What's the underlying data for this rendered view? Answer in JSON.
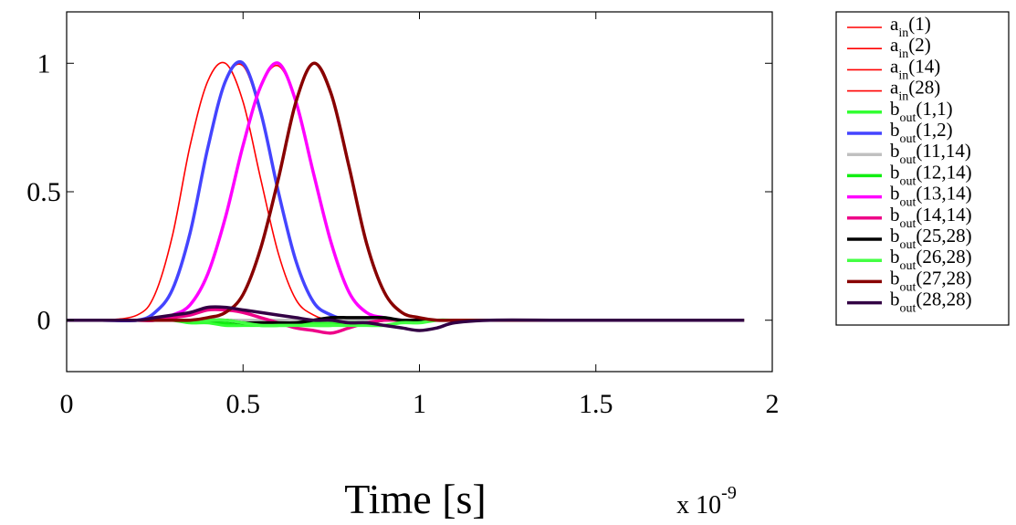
{
  "chart_data": {
    "type": "line",
    "title": "",
    "xlabel": "Time [s]",
    "ylabel": "",
    "x_exponent_label": "x 10",
    "x_exponent_power": "-9",
    "xlim": [
      0,
      2
    ],
    "ylim": [
      -0.2,
      1.2
    ],
    "xticks": [
      0,
      0.5,
      1,
      1.5,
      2
    ],
    "xtick_labels": [
      "0",
      "0.5",
      "1",
      "1.5",
      "2"
    ],
    "yticks": [
      0,
      0.5,
      1
    ],
    "ytick_labels": [
      "0",
      "0.5",
      "1"
    ],
    "grid": false,
    "legend_position": "outside-right",
    "x": [
      0,
      0.1,
      0.2,
      0.25,
      0.3,
      0.35,
      0.4,
      0.45,
      0.5,
      0.55,
      0.6,
      0.65,
      0.7,
      0.75,
      0.8,
      0.85,
      0.9,
      0.95,
      1.0,
      1.05,
      1.1,
      1.2,
      1.4,
      1.6,
      1.8,
      1.92
    ],
    "series": [
      {
        "name": "a_in(1)",
        "base": "a",
        "sub": "in",
        "args": "(1)",
        "color": "#ff0000",
        "width": 1.6,
        "values": [
          0,
          0,
          0.02,
          0.1,
          0.33,
          0.68,
          0.93,
          1.0,
          0.85,
          0.55,
          0.26,
          0.08,
          0.02,
          0,
          0,
          0,
          0,
          0,
          0,
          0,
          0,
          0,
          0,
          0,
          0,
          0
        ]
      },
      {
        "name": "a_in(2)",
        "base": "a",
        "sub": "in",
        "args": "(2)",
        "color": "#ff0000",
        "width": 1.6,
        "values": [
          0,
          0,
          0,
          0.03,
          0.12,
          0.34,
          0.67,
          0.93,
          0.99,
          0.8,
          0.5,
          0.23,
          0.07,
          0.02,
          0,
          0,
          0,
          0,
          0,
          0,
          0,
          0,
          0,
          0,
          0,
          0
        ]
      },
      {
        "name": "a_in(14)",
        "base": "a",
        "sub": "in",
        "args": "(14)",
        "color": "#ff0000",
        "width": 1.6,
        "values": [
          0,
          0,
          0,
          0,
          0.02,
          0.06,
          0.18,
          0.4,
          0.68,
          0.91,
          0.99,
          0.85,
          0.57,
          0.3,
          0.11,
          0.03,
          0.01,
          0,
          0,
          0,
          0,
          0,
          0,
          0,
          0,
          0
        ]
      },
      {
        "name": "a_in(28)",
        "base": "a",
        "sub": "in",
        "args": "(28)",
        "color": "#ff0000",
        "width": 1.6,
        "values": [
          0,
          0,
          0,
          0,
          0,
          0,
          0.01,
          0.03,
          0.1,
          0.28,
          0.55,
          0.85,
          1.0,
          0.88,
          0.6,
          0.3,
          0.11,
          0.03,
          0.01,
          0,
          0,
          0,
          0,
          0,
          0,
          0
        ]
      },
      {
        "name": "b_out(1,1)",
        "base": "b",
        "sub": "out",
        "args": "(1,1)",
        "color": "#33ff33",
        "width": 3.5,
        "values": [
          0,
          0,
          0,
          0,
          0,
          -0.01,
          -0.01,
          -0.02,
          -0.02,
          -0.02,
          -0.02,
          -0.01,
          -0.01,
          -0.01,
          0,
          0,
          0,
          0,
          0,
          0,
          0,
          0,
          0,
          0,
          0,
          0
        ]
      },
      {
        "name": "b_out(1,2)",
        "base": "b",
        "sub": "out",
        "args": "(1,2)",
        "color": "#4444ff",
        "width": 3.5,
        "values": [
          0,
          0,
          0,
          0.03,
          0.12,
          0.34,
          0.67,
          0.93,
          1.0,
          0.81,
          0.5,
          0.23,
          0.07,
          0.02,
          0,
          0,
          0,
          0,
          0,
          0,
          0,
          0,
          0,
          0,
          0,
          0
        ]
      },
      {
        "name": "b_out(11,14)",
        "base": "b",
        "sub": "out",
        "args": "(11,14)",
        "color": "#c0c0c0",
        "width": 3.5,
        "values": [
          0,
          0,
          0,
          0,
          0,
          0,
          0,
          0,
          0,
          0,
          0,
          0,
          0,
          0,
          0,
          0,
          0,
          0,
          0,
          0,
          0,
          0,
          0,
          0,
          0,
          0
        ]
      },
      {
        "name": "b_out(12,14)",
        "base": "b",
        "sub": "out",
        "args": "(12,14)",
        "color": "#11ee11",
        "width": 3.5,
        "values": [
          0,
          0,
          0,
          0,
          0,
          0,
          0,
          -0.01,
          -0.01,
          -0.02,
          -0.02,
          -0.02,
          -0.02,
          -0.02,
          -0.01,
          -0.01,
          0,
          0,
          0,
          0,
          0,
          0,
          0,
          0,
          0,
          0
        ]
      },
      {
        "name": "b_out(13,14)",
        "base": "b",
        "sub": "out",
        "args": "(13,14)",
        "color": "#ff00ff",
        "width": 3.5,
        "values": [
          0,
          0,
          0,
          0,
          0.02,
          0.06,
          0.18,
          0.4,
          0.68,
          0.91,
          1.0,
          0.85,
          0.57,
          0.3,
          0.11,
          0.03,
          0.01,
          0,
          0,
          0,
          0,
          0,
          0,
          0,
          0,
          0
        ]
      },
      {
        "name": "b_out(14,14)",
        "base": "b",
        "sub": "out",
        "args": "(14,14)",
        "color": "#ee0088",
        "width": 3.5,
        "values": [
          0,
          0,
          0,
          0,
          0.01,
          0.02,
          0.04,
          0.04,
          0.03,
          0.01,
          -0.01,
          -0.03,
          -0.04,
          -0.05,
          -0.03,
          -0.01,
          0,
          0,
          0,
          0,
          0,
          0,
          0,
          0,
          0,
          0
        ]
      },
      {
        "name": "b_out(25,28)",
        "base": "b",
        "sub": "out",
        "args": "(25,28)",
        "color": "#000000",
        "width": 3.5,
        "values": [
          0,
          0,
          0,
          0,
          0,
          0,
          0,
          0,
          -0.01,
          -0.01,
          -0.01,
          -0.01,
          0,
          0.01,
          0.01,
          0.01,
          0.01,
          0,
          0,
          0,
          0,
          0,
          0,
          0,
          0,
          0
        ]
      },
      {
        "name": "b_out(26,28)",
        "base": "b",
        "sub": "out",
        "args": "(26,28)",
        "color": "#44ff44",
        "width": 3.5,
        "values": [
          0,
          0,
          0,
          0,
          0,
          0,
          0,
          0,
          -0.01,
          -0.02,
          -0.02,
          -0.02,
          -0.02,
          -0.02,
          -0.02,
          -0.02,
          -0.02,
          -0.01,
          -0.01,
          0,
          0,
          0,
          0,
          0,
          0,
          0
        ]
      },
      {
        "name": "b_out(27,28)",
        "base": "b",
        "sub": "out",
        "args": "(27,28)",
        "color": "#880000",
        "width": 3.5,
        "values": [
          0,
          0,
          0,
          0,
          0,
          0,
          0.01,
          0.03,
          0.1,
          0.28,
          0.55,
          0.85,
          1.0,
          0.88,
          0.6,
          0.3,
          0.11,
          0.03,
          0.01,
          0,
          0,
          0,
          0,
          0,
          0,
          0
        ]
      },
      {
        "name": "b_out(28,28)",
        "base": "b",
        "sub": "out",
        "args": "(28,28)",
        "color": "#330044",
        "width": 3.5,
        "values": [
          0,
          0,
          0,
          0.01,
          0.02,
          0.03,
          0.05,
          0.05,
          0.04,
          0.03,
          0.02,
          0.01,
          0,
          0,
          -0.01,
          -0.01,
          -0.02,
          -0.03,
          -0.04,
          -0.03,
          -0.01,
          0,
          0,
          0,
          0,
          0
        ]
      }
    ]
  }
}
